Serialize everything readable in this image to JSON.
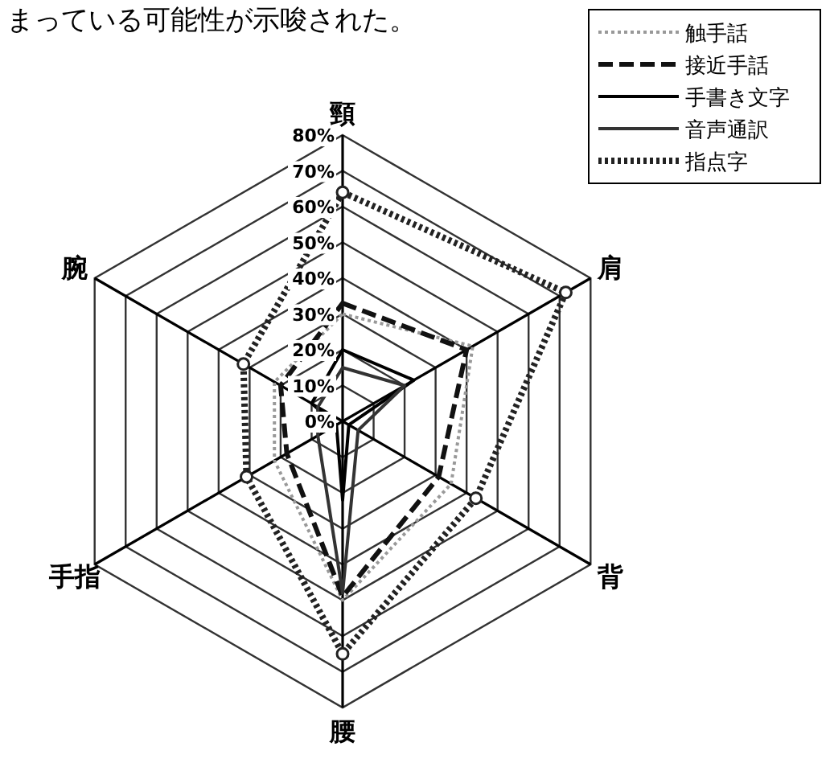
{
  "chart_data": {
    "type": "radar",
    "categories": [
      "頸",
      "肩",
      "背",
      "腰",
      "手指",
      "腕"
    ],
    "ylim": [
      0,
      80
    ],
    "yticks": [
      {
        "value": 0,
        "label": "0%"
      },
      {
        "value": 10,
        "label": "10%"
      },
      {
        "value": 20,
        "label": "20%"
      },
      {
        "value": 30,
        "label": "30%"
      },
      {
        "value": 40,
        "label": "40%"
      },
      {
        "value": 50,
        "label": "50%"
      },
      {
        "value": 60,
        "label": "60%"
      },
      {
        "value": 70,
        "label": "70%"
      },
      {
        "value": 80,
        "label": "80%"
      }
    ],
    "series": [
      {
        "name": "触手話",
        "color": "#999999",
        "line_style": "dotted",
        "values": [
          30,
          42,
          35,
          50,
          22,
          22
        ]
      },
      {
        "name": "接近手話",
        "color": "#111111",
        "line_style": "dashed",
        "values": [
          33,
          40,
          31,
          49,
          18,
          20
        ]
      },
      {
        "name": "手書き文字",
        "color": "#000000",
        "line_style": "solid",
        "values": [
          20,
          23,
          2,
          22,
          2,
          10
        ]
      },
      {
        "name": "音声通訳",
        "color": "#333333",
        "line_style": "solid",
        "values": [
          15,
          20,
          5,
          48,
          8,
          8
        ]
      },
      {
        "name": "指点字",
        "color": "#222222",
        "line_style": "dotted",
        "marker": "circle",
        "values": [
          64,
          72,
          43,
          65,
          31,
          32
        ]
      }
    ],
    "legend": "top right",
    "annotations": [
      "まっている可能性が示唆された。"
    ]
  }
}
